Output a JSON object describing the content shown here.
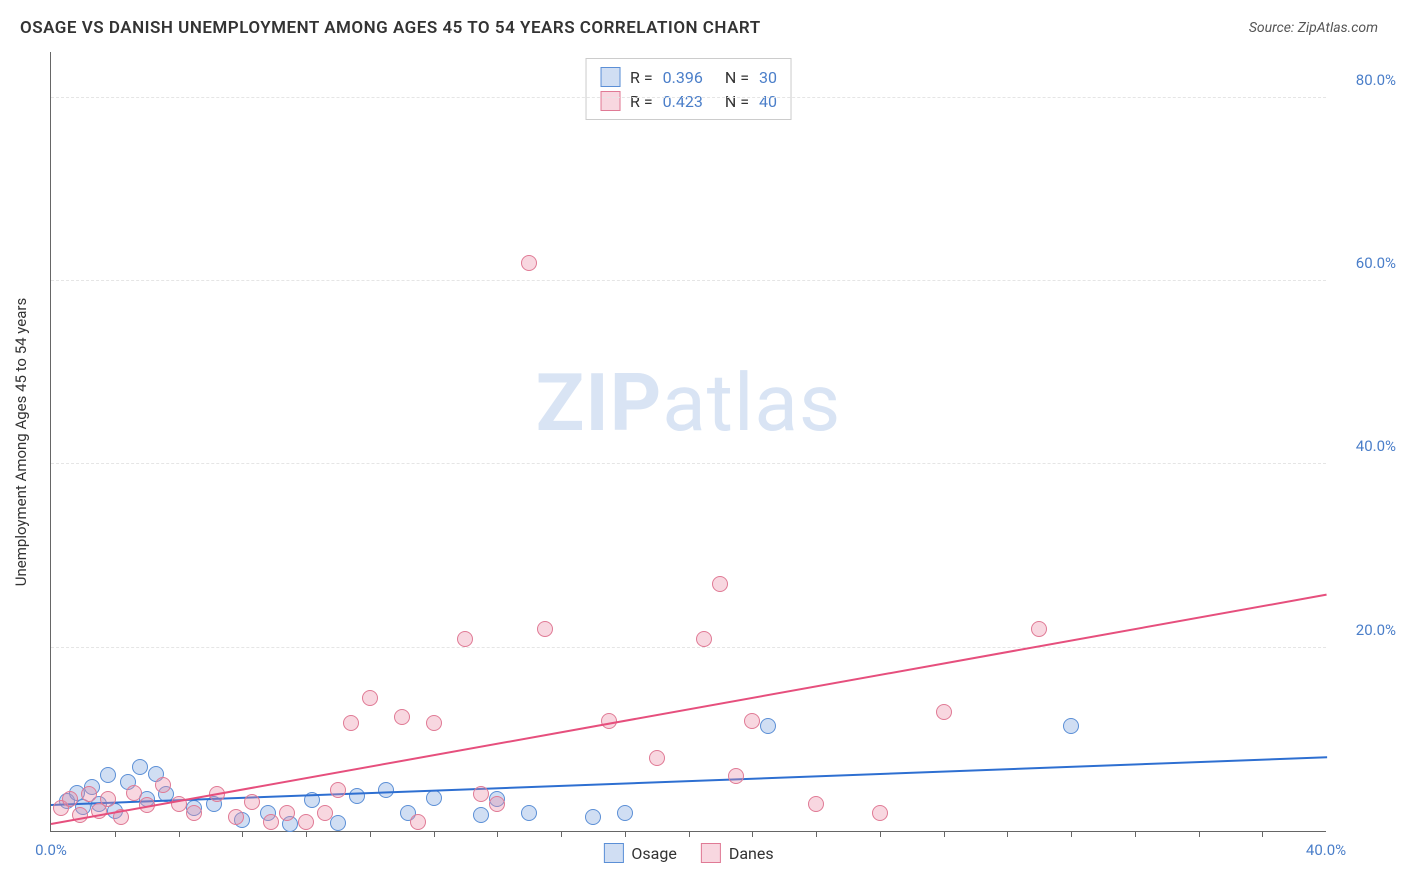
{
  "title": "OSAGE VS DANISH UNEMPLOYMENT AMONG AGES 45 TO 54 YEARS CORRELATION CHART",
  "source_label": "Source: ZipAtlas.com",
  "y_axis_title": "Unemployment Among Ages 45 to 54 years",
  "watermark_bold": "ZIP",
  "watermark_rest": "atlas",
  "chart": {
    "type": "scatter",
    "xlim": [
      0,
      40
    ],
    "ylim": [
      0,
      85
    ],
    "x_tick_labels": [
      {
        "pos": 0,
        "label": "0.0%"
      },
      {
        "pos": 40,
        "label": "40.0%"
      }
    ],
    "x_minor_ticks": [
      2,
      4,
      6,
      8,
      10,
      12,
      14,
      16,
      18,
      20,
      22,
      24,
      26,
      28,
      30,
      32,
      34,
      36,
      38
    ],
    "y_tick_labels": [
      {
        "pos": 20,
        "label": "20.0%"
      },
      {
        "pos": 40,
        "label": "40.0%"
      },
      {
        "pos": 60,
        "label": "60.0%"
      },
      {
        "pos": 80,
        "label": "80.0%"
      }
    ],
    "background_color": "#ffffff",
    "grid_color": "#e5e5e5",
    "point_radius": 8,
    "series": [
      {
        "name": "Osage",
        "fill": "rgba(120,160,220,0.35)",
        "stroke": "#5b8fd6",
        "trend_color": "#2e6fd1",
        "trend": {
          "x1": 0,
          "y1": 3.0,
          "x2": 40,
          "y2": 8.2
        },
        "R": "0.396",
        "N": "30",
        "points": [
          [
            0.5,
            3.3
          ],
          [
            0.8,
            4.2
          ],
          [
            1.0,
            2.6
          ],
          [
            1.3,
            4.8
          ],
          [
            1.5,
            3.0
          ],
          [
            1.8,
            6.1
          ],
          [
            2.0,
            2.2
          ],
          [
            2.4,
            5.4
          ],
          [
            2.8,
            7.0
          ],
          [
            3.0,
            3.5
          ],
          [
            3.3,
            6.2
          ],
          [
            3.6,
            4.0
          ],
          [
            4.5,
            2.5
          ],
          [
            5.1,
            3.0
          ],
          [
            6.0,
            1.2
          ],
          [
            6.8,
            2.0
          ],
          [
            7.5,
            0.8
          ],
          [
            8.2,
            3.4
          ],
          [
            9.0,
            0.9
          ],
          [
            9.6,
            3.8
          ],
          [
            10.5,
            4.5
          ],
          [
            11.2,
            2.0
          ],
          [
            12.0,
            3.6
          ],
          [
            13.5,
            1.8
          ],
          [
            15.0,
            2.0
          ],
          [
            17.0,
            1.5
          ],
          [
            18.0,
            2.0
          ],
          [
            22.5,
            11.5
          ],
          [
            32.0,
            11.5
          ],
          [
            14.0,
            3.5
          ]
        ]
      },
      {
        "name": "Danes",
        "fill": "rgba(235,140,165,0.35)",
        "stroke": "#e07a95",
        "trend_color": "#e64f7d",
        "trend": {
          "x1": 0,
          "y1": 1.0,
          "x2": 40,
          "y2": 26.0
        },
        "R": "0.423",
        "N": "40",
        "points": [
          [
            0.3,
            2.5
          ],
          [
            0.6,
            3.5
          ],
          [
            0.9,
            1.8
          ],
          [
            1.2,
            4.0
          ],
          [
            1.5,
            2.2
          ],
          [
            1.8,
            3.5
          ],
          [
            2.2,
            1.5
          ],
          [
            2.6,
            4.2
          ],
          [
            3.0,
            2.8
          ],
          [
            3.5,
            5.0
          ],
          [
            4.0,
            3.0
          ],
          [
            4.5,
            2.0
          ],
          [
            5.2,
            4.0
          ],
          [
            5.8,
            1.5
          ],
          [
            6.3,
            3.2
          ],
          [
            6.9,
            1.0
          ],
          [
            7.4,
            2.0
          ],
          [
            8.0,
            1.0
          ],
          [
            8.6,
            2.0
          ],
          [
            9.0,
            4.5
          ],
          [
            9.4,
            11.8
          ],
          [
            10.0,
            14.5
          ],
          [
            11.0,
            12.4
          ],
          [
            11.5,
            1.0
          ],
          [
            12.0,
            11.8
          ],
          [
            13.0,
            21.0
          ],
          [
            13.5,
            4.0
          ],
          [
            14.0,
            3.0
          ],
          [
            15.0,
            62.0
          ],
          [
            15.5,
            22.0
          ],
          [
            17.5,
            12.0
          ],
          [
            19.0,
            8.0
          ],
          [
            20.5,
            21.0
          ],
          [
            21.0,
            27.0
          ],
          [
            22.0,
            12.0
          ],
          [
            24.0,
            3.0
          ],
          [
            26.0,
            2.0
          ],
          [
            28.0,
            13.0
          ],
          [
            31.0,
            22.0
          ],
          [
            21.5,
            6.0
          ]
        ]
      }
    ]
  },
  "legend_top": {
    "rows": [
      {
        "series_idx": 0,
        "R_label": "R =",
        "N_label": "N ="
      },
      {
        "series_idx": 1,
        "R_label": "R =",
        "N_label": "N ="
      }
    ]
  },
  "legend_bottom": {
    "items": [
      {
        "series_idx": 0
      },
      {
        "series_idx": 1
      }
    ]
  }
}
